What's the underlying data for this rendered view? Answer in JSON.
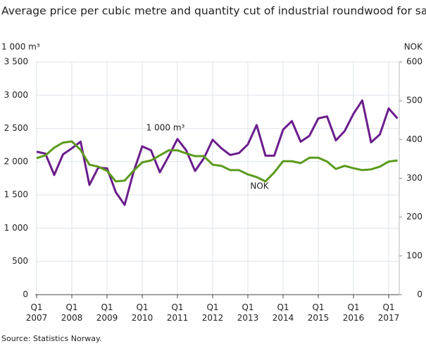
{
  "chart_data": {
    "type": "line",
    "title": "Average price per cubic metre and quantity cut of industrial roundwood for sale",
    "y_label": "1 000 m³",
    "y2_label": "NOK",
    "source": "Source: Statistics Norway.",
    "annotations": [
      {
        "text": "1 000 m³",
        "series": 0,
        "index": 14
      },
      {
        "text": "NOK",
        "series": 1,
        "index": 25
      }
    ],
    "categories": [
      "Q1 2007",
      null,
      null,
      null,
      "Q1 2008",
      null,
      null,
      null,
      "Q1 2009",
      null,
      null,
      null,
      "Q1 2010",
      null,
      null,
      null,
      "Q1 2011",
      null,
      null,
      null,
      "Q1 2012",
      null,
      null,
      null,
      "Q1 2013",
      null,
      null,
      null,
      "Q1 2014",
      null,
      null,
      null,
      "Q1 2015",
      null,
      null,
      null,
      "Q1 2016",
      null,
      null,
      null,
      "Q1 2017",
      null
    ],
    "series": [
      {
        "name": "1 000 m³",
        "color": "#6b1d8c",
        "values": [
          2150,
          2120,
          1800,
          2110,
          2200,
          2300,
          1650,
          1910,
          1900,
          1540,
          1350,
          1840,
          2230,
          2170,
          1840,
          2080,
          2340,
          2170,
          1860,
          2050,
          2330,
          2200,
          2100,
          2130,
          2260,
          2550,
          2090,
          2090,
          2480,
          2610,
          2300,
          2390,
          2650,
          2680,
          2320,
          2460,
          2720,
          2920,
          2290,
          2410,
          2800,
          2650
        ]
      },
      {
        "name": "NOK",
        "color": "#5b9a1c",
        "axis": "y2",
        "values": [
          352,
          359,
          379,
          392,
          395,
          373,
          335,
          330,
          319,
          292,
          294,
          319,
          341,
          346,
          359,
          372,
          372,
          364,
          357,
          357,
          335,
          332,
          321,
          321,
          310,
          303,
          292,
          315,
          344,
          344,
          339,
          353,
          353,
          343,
          324,
          332,
          326,
          321,
          323,
          330,
          343,
          346
        ]
      }
    ],
    "ylim": [
      0,
      3500
    ],
    "yticks": [
      0,
      500,
      {
        "value": 1000,
        "label": "1 000"
      },
      {
        "value": 1500,
        "label": "1 500"
      },
      {
        "value": 2000,
        "label": "2 000"
      },
      {
        "value": 2500,
        "label": "2 500"
      },
      {
        "value": 3000,
        "label": "3 000"
      },
      {
        "value": 3500,
        "label": "3 500"
      }
    ],
    "y2lim": [
      0,
      600
    ],
    "y2ticks": [
      0,
      100,
      200,
      300,
      400,
      500,
      600
    ],
    "grid": true
  }
}
